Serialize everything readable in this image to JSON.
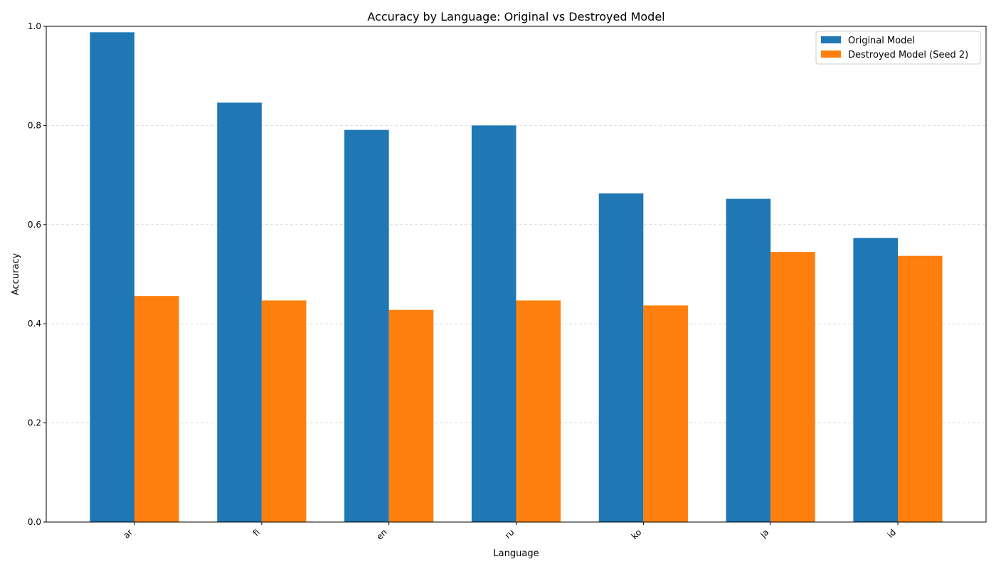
{
  "chart_data": {
    "type": "bar",
    "title": "Accuracy by Language: Original vs Destroyed Model",
    "xlabel": "Language",
    "ylabel": "Accuracy",
    "ylim": [
      0,
      1.0
    ],
    "yticks": [
      "0.0",
      "0.2",
      "0.4",
      "0.6",
      "0.8",
      "1.0"
    ],
    "categories": [
      "ar",
      "fi",
      "en",
      "ru",
      "ko",
      "ja",
      "id"
    ],
    "series": [
      {
        "name": "Original Model",
        "color": "#1f77b4",
        "values": [
          0.988,
          0.846,
          0.791,
          0.8,
          0.663,
          0.652,
          0.573
        ]
      },
      {
        "name": "Destroyed Model (Seed 2)",
        "color": "#ff7f0e",
        "values": [
          0.456,
          0.447,
          0.428,
          0.447,
          0.437,
          0.545,
          0.537
        ]
      }
    ],
    "grid": "y-dashed",
    "legend_position": "top-right"
  }
}
